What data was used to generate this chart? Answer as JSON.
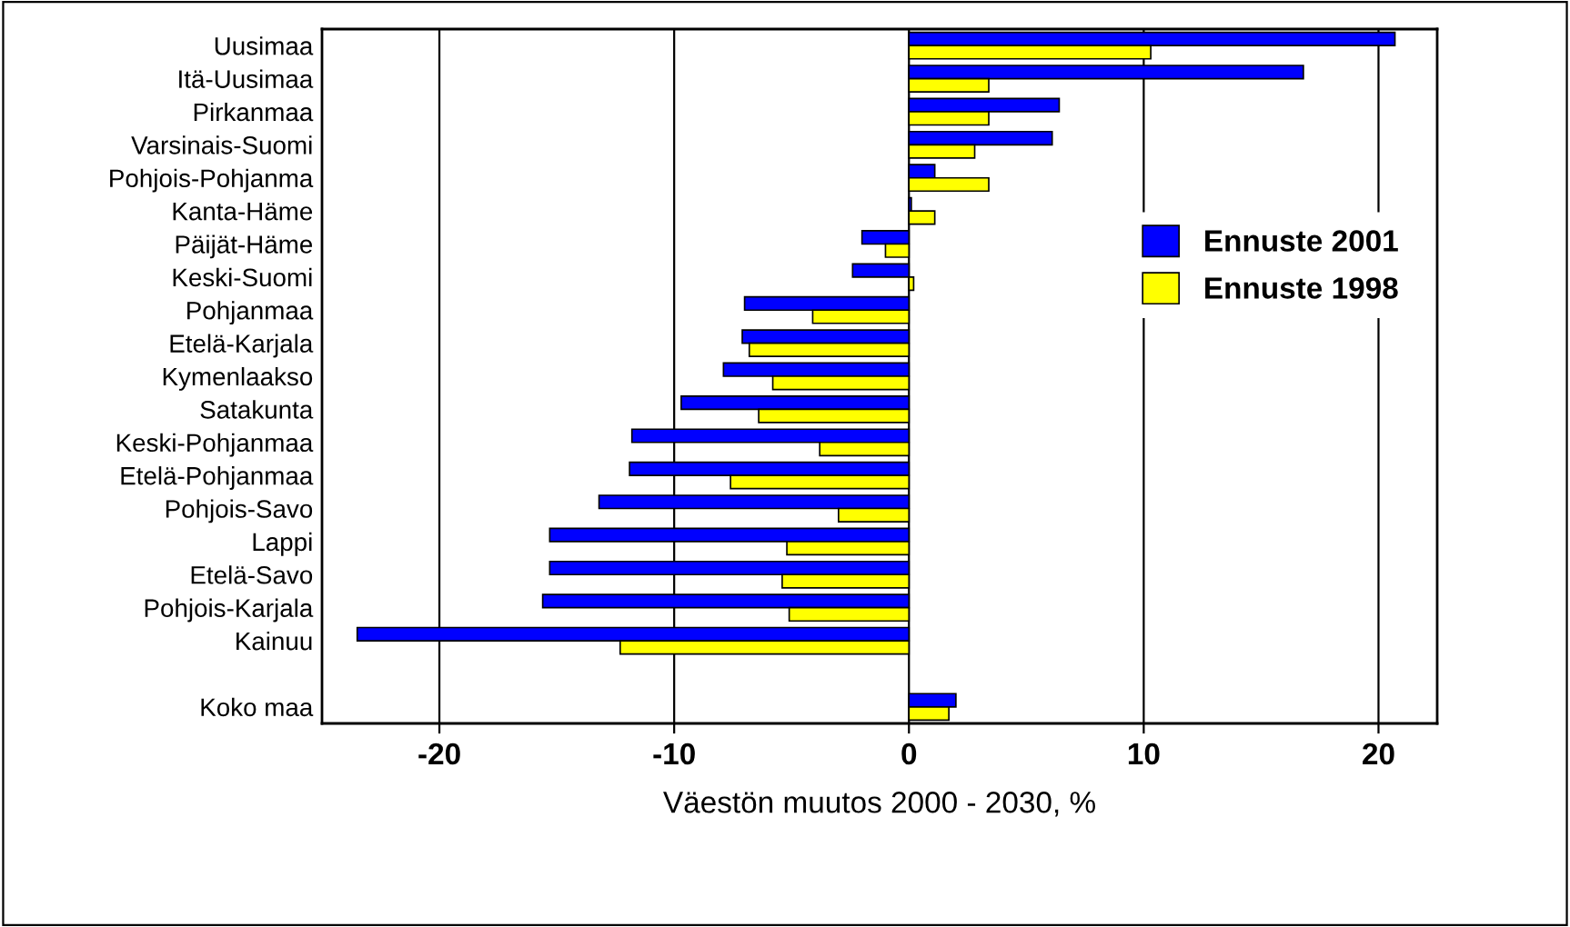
{
  "chart_data": {
    "type": "bar",
    "orientation": "horizontal",
    "xlabel": "Väestön muutos 2000 - 2030, %",
    "categories": [
      "Uusimaa",
      "Itä-Uusimaa",
      "Pirkanmaa",
      "Varsinais-Suomi",
      "Pohjois-Pohjanma",
      "Kanta-Häme",
      "Päijät-Häme",
      "Keski-Suomi",
      "Pohjanmaa",
      "Etelä-Karjala",
      "Kymenlaakso",
      "Satakunta",
      "Keski-Pohjanmaa",
      "Etelä-Pohjanmaa",
      "Pohjois-Savo",
      "Lappi",
      "Etelä-Savo",
      "Pohjois-Karjala",
      "Kainuu",
      null,
      "Koko maa"
    ],
    "series": [
      {
        "name": "Ennuste 2001",
        "color": "#0000ff",
        "values": [
          20.7,
          16.8,
          6.4,
          6.1,
          1.1,
          0.1,
          -2.0,
          -2.4,
          -7.0,
          -7.1,
          -7.9,
          -9.7,
          -11.8,
          -11.9,
          -13.2,
          -15.3,
          -15.3,
          -15.6,
          -23.5,
          null,
          2.0
        ]
      },
      {
        "name": "Ennuste 1998",
        "color": "#ffff00",
        "values": [
          10.3,
          3.4,
          3.4,
          2.8,
          3.4,
          1.1,
          -1.0,
          0.2,
          -4.1,
          -6.8,
          -5.8,
          -6.4,
          -3.8,
          -7.6,
          -3.0,
          -5.2,
          -5.4,
          -5.1,
          -12.3,
          null,
          1.7
        ]
      }
    ],
    "xlim": [
      -25,
      22.5
    ],
    "xticks": [
      -20,
      -10,
      0,
      10,
      20
    ],
    "grid": "x",
    "legend": "right"
  }
}
